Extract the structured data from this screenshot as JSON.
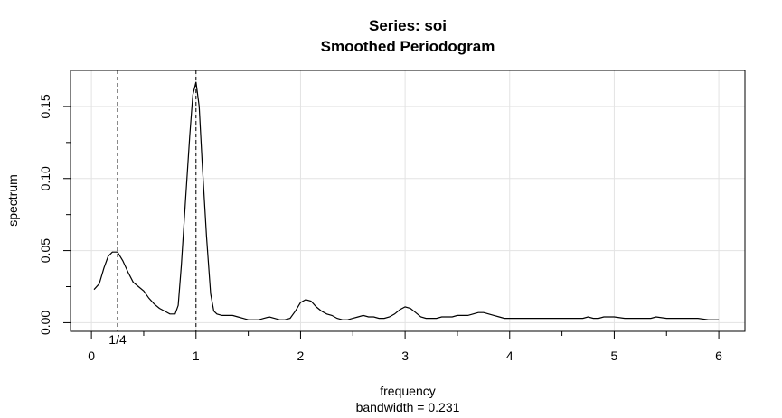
{
  "chart_data": {
    "type": "line",
    "title": "Series: soi",
    "subtitle": "Smoothed Periodogram",
    "xlabel": "frequency",
    "xlabel_sub": "bandwidth = 0.231",
    "ylabel": "spectrum",
    "xlim": [
      -0.2,
      6.25
    ],
    "ylim": [
      -0.006,
      0.175
    ],
    "x_ticks": [
      "0",
      "1",
      "2",
      "3",
      "4",
      "5",
      "6"
    ],
    "y_ticks": [
      "0.00",
      "0.05",
      "0.10",
      "0.15"
    ],
    "grid": true,
    "annotations": [
      {
        "x": 0.25,
        "label": "1/4",
        "style": "dashed"
      },
      {
        "x": 1.0,
        "label": "",
        "style": "dashed"
      }
    ],
    "series": [
      {
        "x": [
          0.025,
          0.075,
          0.12,
          0.16,
          0.2,
          0.25,
          0.3,
          0.35,
          0.4,
          0.45,
          0.5,
          0.55,
          0.6,
          0.65,
          0.7,
          0.75,
          0.8,
          0.83,
          0.86,
          0.9,
          0.94,
          0.97,
          1.0,
          1.03,
          1.06,
          1.1,
          1.14,
          1.17,
          1.2,
          1.25,
          1.3,
          1.35,
          1.4,
          1.45,
          1.5,
          1.55,
          1.6,
          1.65,
          1.7,
          1.75,
          1.8,
          1.85,
          1.9,
          1.95,
          2.0,
          2.05,
          2.1,
          2.15,
          2.2,
          2.25,
          2.3,
          2.35,
          2.4,
          2.45,
          2.5,
          2.55,
          2.6,
          2.65,
          2.7,
          2.75,
          2.8,
          2.85,
          2.9,
          2.95,
          3.0,
          3.05,
          3.1,
          3.15,
          3.2,
          3.25,
          3.3,
          3.35,
          3.4,
          3.45,
          3.5,
          3.55,
          3.6,
          3.65,
          3.7,
          3.75,
          3.8,
          3.85,
          3.9,
          3.95,
          4.0,
          4.05,
          4.1,
          4.2,
          4.3,
          4.4,
          4.5,
          4.6,
          4.7,
          4.75,
          4.8,
          4.85,
          4.9,
          5.0,
          5.1,
          5.2,
          5.3,
          5.35,
          5.4,
          5.5,
          5.6,
          5.7,
          5.8,
          5.9,
          6.0
        ],
        "values": [
          0.023,
          0.027,
          0.038,
          0.046,
          0.049,
          0.049,
          0.043,
          0.035,
          0.028,
          0.025,
          0.022,
          0.017,
          0.013,
          0.01,
          0.008,
          0.006,
          0.006,
          0.012,
          0.04,
          0.085,
          0.13,
          0.158,
          0.167,
          0.15,
          0.11,
          0.06,
          0.02,
          0.008,
          0.006,
          0.005,
          0.005,
          0.005,
          0.004,
          0.003,
          0.002,
          0.002,
          0.002,
          0.003,
          0.004,
          0.003,
          0.002,
          0.002,
          0.003,
          0.008,
          0.014,
          0.016,
          0.015,
          0.011,
          0.008,
          0.006,
          0.005,
          0.003,
          0.002,
          0.002,
          0.003,
          0.004,
          0.005,
          0.004,
          0.004,
          0.003,
          0.003,
          0.004,
          0.006,
          0.009,
          0.011,
          0.01,
          0.007,
          0.004,
          0.003,
          0.003,
          0.003,
          0.004,
          0.004,
          0.004,
          0.005,
          0.005,
          0.005,
          0.006,
          0.007,
          0.007,
          0.006,
          0.005,
          0.004,
          0.003,
          0.003,
          0.003,
          0.003,
          0.003,
          0.003,
          0.003,
          0.003,
          0.003,
          0.003,
          0.004,
          0.003,
          0.003,
          0.004,
          0.004,
          0.003,
          0.003,
          0.003,
          0.003,
          0.004,
          0.003,
          0.003,
          0.003,
          0.003,
          0.002,
          0.002
        ]
      }
    ]
  }
}
